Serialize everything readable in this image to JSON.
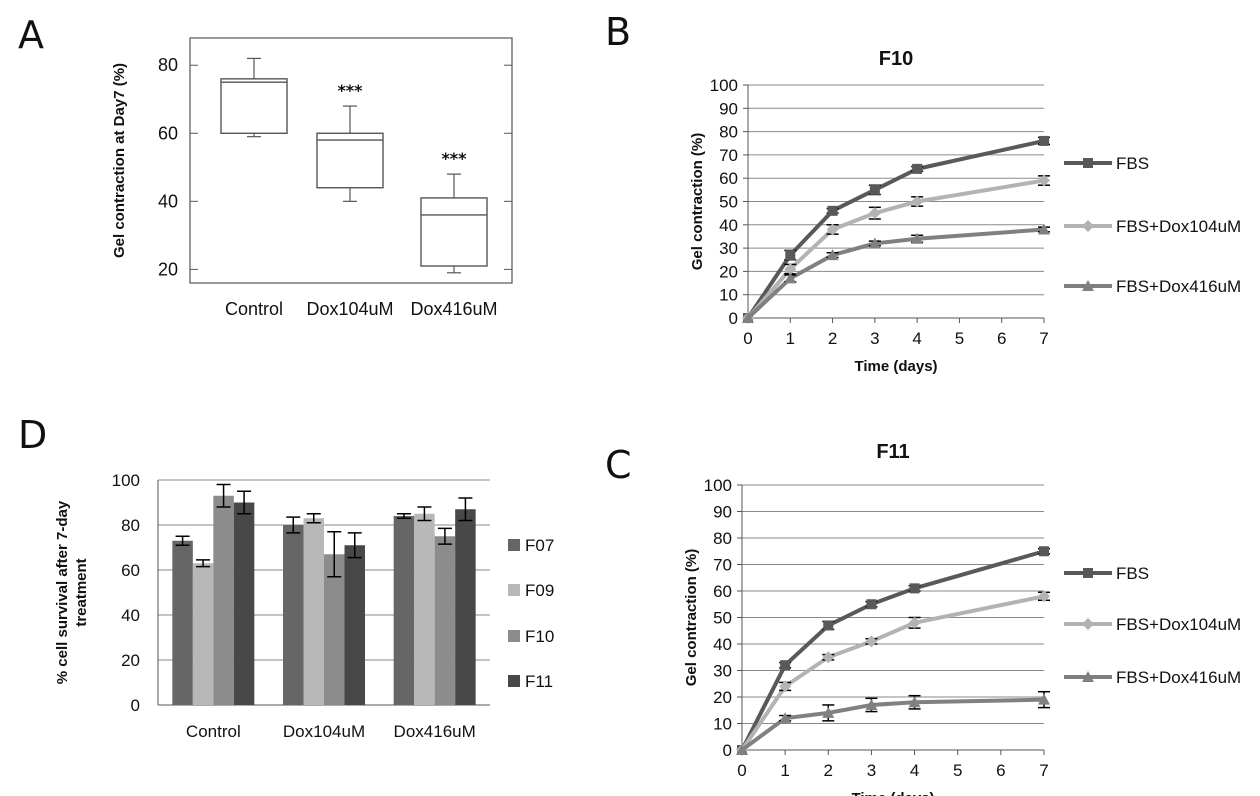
{
  "panels": {
    "a": "A",
    "b": "B",
    "c": "C",
    "d": "D"
  },
  "chart_data": [
    {
      "panel": "A",
      "type": "boxplot",
      "ylabel": "Gel contraction at Day7 (%)",
      "ylim": [
        16,
        88
      ],
      "yticks": [
        20,
        40,
        60,
        80
      ],
      "categories": [
        "Control",
        "Dox104uM",
        "Dox416uM"
      ],
      "boxes": [
        {
          "min": 59,
          "q1": 60,
          "median": 75,
          "q3": 76,
          "max": 82,
          "annotation": ""
        },
        {
          "min": 40,
          "q1": 44,
          "median": 58,
          "q3": 60,
          "max": 68,
          "annotation": "***"
        },
        {
          "min": 19,
          "q1": 21,
          "median": 36,
          "q3": 41,
          "max": 48,
          "annotation": "***"
        }
      ],
      "grid": false
    },
    {
      "panel": "B",
      "type": "line",
      "title": "F10",
      "xlabel": "Time (days)",
      "ylabel": "Gel contraction (%)",
      "ylim": [
        0,
        100
      ],
      "yticks": [
        0,
        10,
        20,
        30,
        40,
        50,
        60,
        70,
        80,
        90,
        100
      ],
      "xticks": [
        0,
        1,
        2,
        3,
        4,
        5,
        6,
        7
      ],
      "grid": true,
      "legend_position": "right",
      "series": [
        {
          "name": "FBS",
          "color": "#595959",
          "marker": "square",
          "x": [
            0,
            1,
            2,
            3,
            4,
            7
          ],
          "y": [
            0,
            27,
            46,
            55,
            64,
            76
          ],
          "err": [
            0,
            2,
            1,
            2,
            1,
            1.5
          ]
        },
        {
          "name": "FBS+Dox104uM",
          "color": "#b3b3b3",
          "marker": "diamond",
          "x": [
            0,
            1,
            2,
            3,
            4,
            7
          ],
          "y": [
            0,
            21,
            38,
            45,
            50,
            59
          ],
          "err": [
            0,
            2,
            2,
            2.5,
            2,
            2
          ]
        },
        {
          "name": "FBS+Dox416uM",
          "color": "#808080",
          "marker": "triangle",
          "x": [
            0,
            1,
            2,
            3,
            4,
            7
          ],
          "y": [
            0,
            17,
            27,
            32,
            34,
            38
          ],
          "err": [
            0,
            1.5,
            1,
            1,
            1.5,
            1
          ]
        }
      ]
    },
    {
      "panel": "C",
      "type": "line",
      "title": "F11",
      "xlabel": "Time (days)",
      "ylabel": "Gel contraction (%)",
      "ylim": [
        0,
        100
      ],
      "yticks": [
        0,
        10,
        20,
        30,
        40,
        50,
        60,
        70,
        80,
        90,
        100
      ],
      "xticks": [
        0,
        1,
        2,
        3,
        4,
        5,
        6,
        7
      ],
      "grid": true,
      "legend_position": "right",
      "series": [
        {
          "name": "FBS",
          "color": "#595959",
          "marker": "square",
          "x": [
            0,
            1,
            2,
            3,
            4,
            7
          ],
          "y": [
            0,
            32,
            47,
            55,
            61,
            75
          ],
          "err": [
            0,
            1,
            1.5,
            1,
            1,
            1
          ]
        },
        {
          "name": "FBS+Dox104uM",
          "color": "#b3b3b3",
          "marker": "diamond",
          "x": [
            0,
            1,
            2,
            3,
            4,
            7
          ],
          "y": [
            0,
            24,
            35,
            41,
            48,
            58
          ],
          "err": [
            0,
            1.5,
            1,
            1,
            2,
            1.5
          ]
        },
        {
          "name": "FBS+Dox416uM",
          "color": "#808080",
          "marker": "triangle",
          "x": [
            0,
            1,
            2,
            3,
            4,
            7
          ],
          "y": [
            0,
            12,
            14,
            17,
            18,
            19
          ],
          "err": [
            0,
            1,
            3,
            2.5,
            2.5,
            3
          ]
        }
      ]
    },
    {
      "panel": "D",
      "type": "bar",
      "ylabel_lines": [
        "% cell survival after 7-day",
        "treatment"
      ],
      "ylim": [
        0,
        100
      ],
      "yticks": [
        0,
        20,
        40,
        60,
        80,
        100
      ],
      "categories": [
        "Control",
        "Dox104uM",
        "Dox416uM"
      ],
      "grid": true,
      "legend_position": "right",
      "series": [
        {
          "name": "F07",
          "color": "#666666",
          "values": [
            73,
            80,
            84
          ],
          "err": [
            2,
            3.5,
            1
          ]
        },
        {
          "name": "F09",
          "color": "#b8b8b8",
          "values": [
            63,
            83,
            85
          ],
          "err": [
            1.5,
            2,
            3
          ]
        },
        {
          "name": "F10",
          "color": "#8c8c8c",
          "values": [
            93,
            67,
            75
          ],
          "err": [
            5,
            10,
            3.5
          ]
        },
        {
          "name": "F11",
          "color": "#484848",
          "values": [
            90,
            71,
            87
          ],
          "err": [
            5,
            5.5,
            5
          ]
        }
      ]
    }
  ]
}
